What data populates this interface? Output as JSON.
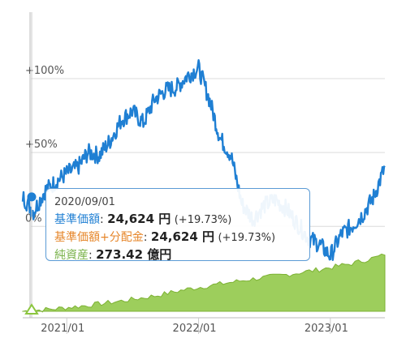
{
  "chart_data": {
    "type": "line",
    "y_ticks": [
      {
        "value": 100,
        "label": "+100%"
      },
      {
        "value": 50,
        "label": "+50%"
      },
      {
        "value": 0,
        "label": "0%"
      }
    ],
    "x_ticks": [
      {
        "date": "2021-01",
        "label": "2021/01"
      },
      {
        "date": "2022-01",
        "label": "2022/01"
      },
      {
        "date": "2023-01",
        "label": "2023/01"
      }
    ],
    "x_range": [
      "2020-09-01",
      "2023-06-01"
    ],
    "y_range": [
      -58,
      145
    ],
    "series": [
      {
        "kind": "return",
        "color": "#1f7fd3",
        "x": [
          "2020-09-01",
          "2020-10-01",
          "2020-11-01",
          "2020-12-01",
          "2021-01-01",
          "2021-02-01",
          "2021-03-01",
          "2021-04-01",
          "2021-05-01",
          "2021-06-01",
          "2021-07-01",
          "2021-08-01",
          "2021-09-01",
          "2021-10-01",
          "2021-11-01",
          "2021-12-01",
          "2022-01-01",
          "2022-02-01",
          "2022-03-01",
          "2022-04-01",
          "2022-05-01",
          "2022-06-01",
          "2022-07-01",
          "2022-08-01",
          "2022-09-01",
          "2022-10-01",
          "2022-11-01",
          "2022-12-01",
          "2023-01-01",
          "2023-02-01",
          "2023-03-01",
          "2023-04-01",
          "2023-05-01",
          "2023-06-01"
        ],
        "y": [
          20,
          10,
          24,
          30,
          36,
          40,
          50,
          48,
          58,
          72,
          78,
          70,
          86,
          92,
          94,
          102,
          107,
          85,
          60,
          48,
          15,
          5,
          14,
          18,
          12,
          2,
          -8,
          -12,
          -20,
          -5,
          0,
          8,
          20,
          40
        ]
      },
      {
        "kind": "net_assets",
        "color": "#8cc63f",
        "x": [
          "2020-09-01",
          "2020-12-01",
          "2021-03-01",
          "2021-06-01",
          "2021-09-01",
          "2021-12-01",
          "2022-03-01",
          "2022-06-01",
          "2022-09-01",
          "2022-12-01",
          "2023-03-01",
          "2023-06-01"
        ],
        "y": [
          0,
          3,
          7,
          12,
          18,
          26,
          32,
          38,
          43,
          49,
          56,
          66
        ]
      }
    ]
  },
  "tooltip": {
    "date": "2020/09/01",
    "nav_label": "基準価額",
    "nav_value": "24,624 円",
    "nav_pct": "(+19.73%)",
    "nav_div_label": "基準価額+分配金",
    "nav_div_value": "24,624 円",
    "nav_div_pct": "(+19.73%)",
    "assets_label": "純資産",
    "assets_value": "273.42 億円",
    "separator": ":"
  },
  "colors": {
    "line": "#1f7fd3",
    "area": "#8cc63f",
    "accent_orange": "#e6862a"
  }
}
